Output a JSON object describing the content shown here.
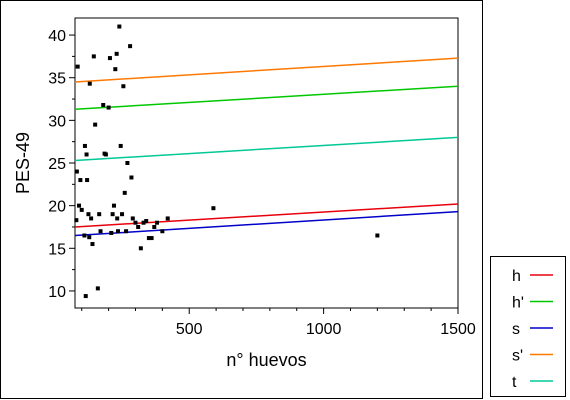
{
  "chart_data": {
    "type": "scatter",
    "title": "",
    "xlabel": "n° huevos",
    "ylabel": "PES-49",
    "xlim": [
      75,
      1500
    ],
    "ylim": [
      8,
      42
    ],
    "xticks": [
      500,
      1000,
      1500
    ],
    "xtick_labels": [
      "500",
      "1000",
      "1500"
    ],
    "yticks": [
      10,
      15,
      20,
      25,
      30,
      35,
      40
    ],
    "ytick_labels": [
      "10",
      "15",
      "20",
      "25",
      "30",
      "35",
      "40"
    ],
    "grid": false,
    "legend_position": "bottom-right, outside plot",
    "points": {
      "x": [
        80,
        82,
        85,
        90,
        95,
        100,
        110,
        112,
        115,
        118,
        120,
        125,
        128,
        130,
        135,
        140,
        145,
        150,
        160,
        165,
        170,
        180,
        185,
        190,
        200,
        205,
        210,
        215,
        220,
        225,
        230,
        232,
        235,
        240,
        245,
        250,
        255,
        260,
        265,
        270,
        280,
        285,
        290,
        300,
        310,
        320,
        330,
        340,
        350,
        360,
        370,
        380,
        400,
        420,
        590,
        1200
      ],
      "y": [
        18.3,
        24.0,
        36.3,
        20.0,
        23.0,
        19.5,
        16.5,
        27.0,
        9.4,
        26.0,
        23.0,
        19.0,
        16.3,
        34.3,
        18.5,
        15.5,
        37.5,
        29.5,
        10.3,
        19.0,
        17.0,
        31.8,
        26.1,
        26.0,
        31.5,
        37.3,
        16.8,
        19.0,
        20.0,
        36.0,
        37.8,
        18.5,
        17.0,
        41.0,
        27.0,
        19.0,
        34.0,
        21.5,
        17.0,
        25.0,
        38.7,
        23.3,
        18.5,
        18.0,
        17.5,
        15.0,
        18.0,
        18.2,
        16.2,
        16.2,
        17.5,
        18.0,
        17.0,
        18.5,
        19.7,
        16.5
      ]
    },
    "series": [
      {
        "name": "h",
        "color": "#e8000b",
        "x": [
          75,
          1500
        ],
        "y": [
          17.5,
          20.2
        ]
      },
      {
        "name": "h'",
        "color": "#00c800",
        "x": [
          75,
          1500
        ],
        "y": [
          31.3,
          34.0
        ]
      },
      {
        "name": "s",
        "color": "#0000c8",
        "x": [
          75,
          1500
        ],
        "y": [
          16.5,
          19.3
        ]
      },
      {
        "name": "s'",
        "color": "#ff7800",
        "x": [
          75,
          1500
        ],
        "y": [
          34.5,
          37.3
        ]
      },
      {
        "name": "t",
        "color": "#00c896",
        "x": [
          75,
          1500
        ],
        "y": [
          25.3,
          28.0
        ]
      }
    ]
  }
}
